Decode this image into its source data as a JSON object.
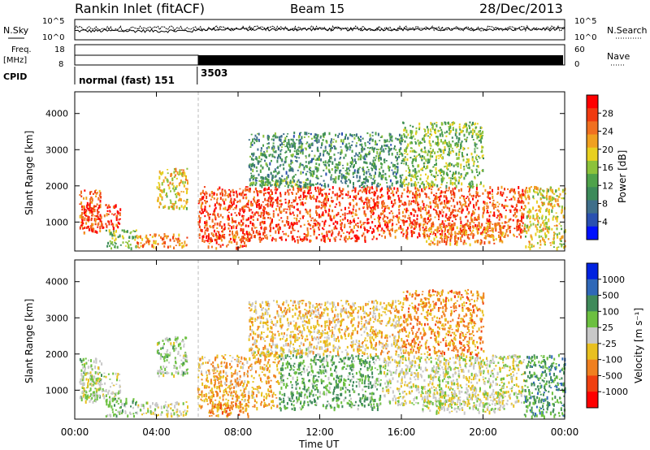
{
  "header": {
    "station": "Rankin Inlet (fitACF)",
    "beam": "Beam 15",
    "date": "28/Dec/2013"
  },
  "top_panel": {
    "nsky_label": "N.Sky",
    "nsky_ticks": [
      "10^5",
      "10^0"
    ],
    "nsearch_label": "N.Search",
    "nsearch_ticks": [
      "10^5",
      "10^0"
    ],
    "freq_label": "Freq.",
    "freq_unit": "[MHz]",
    "freq_ticks": [
      "18",
      "8"
    ],
    "nave_label": "Nave",
    "nave_ticks": [
      "60",
      "0"
    ],
    "cpid_label": "CPID",
    "cpid_mode_1": "normal (fast) 151",
    "cpid_mode_2": "3503",
    "cpid_switch_hour": 6.0
  },
  "chart_data": [
    {
      "type": "heatmap",
      "name": "power",
      "ylabel": "Slant Range [km]",
      "xlim": [
        0,
        24
      ],
      "ylim": [
        200,
        4600
      ],
      "yticks": [
        "1000",
        "2000",
        "3000",
        "4000"
      ],
      "colorbar_label": "Power [dB]",
      "colorbar_ticks": [
        "28",
        "24",
        "20",
        "16",
        "12",
        "8",
        "4"
      ],
      "colorscale": [
        "#0010ff",
        "#2a50b0",
        "#3f6f8a",
        "#3c8a5a",
        "#4fa24a",
        "#8cc23a",
        "#e8d020",
        "#f0a020",
        "#f07020",
        "#f03a10",
        "#ff0000"
      ],
      "echo_regions": [
        {
          "x": [
            0.2,
            1.3
          ],
          "y": [
            700,
            1900
          ],
          "power": 24
        },
        {
          "x": [
            0.3,
            2.2
          ],
          "y": [
            800,
            1500
          ],
          "power": 26
        },
        {
          "x": [
            1.5,
            3.0
          ],
          "y": [
            300,
            800
          ],
          "power": 14
        },
        {
          "x": [
            3.0,
            5.5
          ],
          "y": [
            300,
            700
          ],
          "power": 22
        },
        {
          "x": [
            4.0,
            5.5
          ],
          "y": [
            1400,
            2500
          ],
          "power": 18
        },
        {
          "x": [
            6.0,
            15.0
          ],
          "y": [
            500,
            2000
          ],
          "power": 26
        },
        {
          "x": [
            8.5,
            11.5
          ],
          "y": [
            2000,
            2200
          ],
          "power": 14
        },
        {
          "x": [
            6.5,
            8.5
          ],
          "y": [
            300,
            700
          ],
          "power": 24
        },
        {
          "x": [
            15.0,
            22.0
          ],
          "y": [
            600,
            2000
          ],
          "power": 25
        },
        {
          "x": [
            17.0,
            21.0
          ],
          "y": [
            400,
            1000
          ],
          "power": 22
        },
        {
          "x": [
            22.0,
            24.0
          ],
          "y": [
            300,
            2000
          ],
          "power": 18
        },
        {
          "x": [
            8.5,
            16.0
          ],
          "y": [
            2000,
            3500
          ],
          "power": 10
        },
        {
          "x": [
            16.0,
            20.0
          ],
          "y": [
            2000,
            3800
          ],
          "power": 14
        }
      ]
    },
    {
      "type": "heatmap",
      "name": "velocity",
      "ylabel": "Slant Range [km]",
      "xlabel": "Time UT",
      "xlim": [
        0,
        24
      ],
      "ylim": [
        200,
        4600
      ],
      "xticks": [
        "00:00",
        "04:00",
        "08:00",
        "12:00",
        "16:00",
        "20:00",
        "00:00"
      ],
      "yticks": [
        "1000",
        "2000",
        "3000",
        "4000"
      ],
      "colorbar_label": "Velocity [m s⁻¹]",
      "colorbar_ticks": [
        "1000",
        "500",
        "100",
        "25",
        "-25",
        "-100",
        "-500",
        "-1000"
      ],
      "colorscale": [
        "#0022e0",
        "#2f68b8",
        "#3f8a5a",
        "#6cc040",
        "#c8c8c8",
        "#e8c020",
        "#f08020",
        "#f04010",
        "#ff0000"
      ],
      "echo_regions": [
        {
          "x": [
            0.2,
            1.3
          ],
          "y": [
            700,
            1900
          ],
          "velocity": 100
        },
        {
          "x": [
            0.3,
            2.2
          ],
          "y": [
            800,
            1500
          ],
          "velocity": 60
        },
        {
          "x": [
            1.5,
            3.0
          ],
          "y": [
            300,
            800
          ],
          "velocity": 200
        },
        {
          "x": [
            3.0,
            5.5
          ],
          "y": [
            300,
            700
          ],
          "velocity": -50
        },
        {
          "x": [
            4.0,
            5.5
          ],
          "y": [
            1400,
            2500
          ],
          "velocity": 120
        },
        {
          "x": [
            6.0,
            10.0
          ],
          "y": [
            500,
            2000
          ],
          "velocity": -300
        },
        {
          "x": [
            10.0,
            15.0
          ],
          "y": [
            500,
            2000
          ],
          "velocity": 300
        },
        {
          "x": [
            8.5,
            11.5
          ],
          "y": [
            2000,
            2200
          ],
          "velocity": 0
        },
        {
          "x": [
            6.5,
            8.5
          ],
          "y": [
            300,
            700
          ],
          "velocity": -400
        },
        {
          "x": [
            15.0,
            22.0
          ],
          "y": [
            600,
            2000
          ],
          "velocity": -20
        },
        {
          "x": [
            17.0,
            21.0
          ],
          "y": [
            400,
            1000
          ],
          "velocity": 0
        },
        {
          "x": [
            22.0,
            24.0
          ],
          "y": [
            300,
            2000
          ],
          "velocity": 400
        },
        {
          "x": [
            8.5,
            16.0
          ],
          "y": [
            2000,
            3500
          ],
          "velocity": -200
        },
        {
          "x": [
            16.0,
            20.0
          ],
          "y": [
            2000,
            3800
          ],
          "velocity": -400
        }
      ]
    }
  ]
}
